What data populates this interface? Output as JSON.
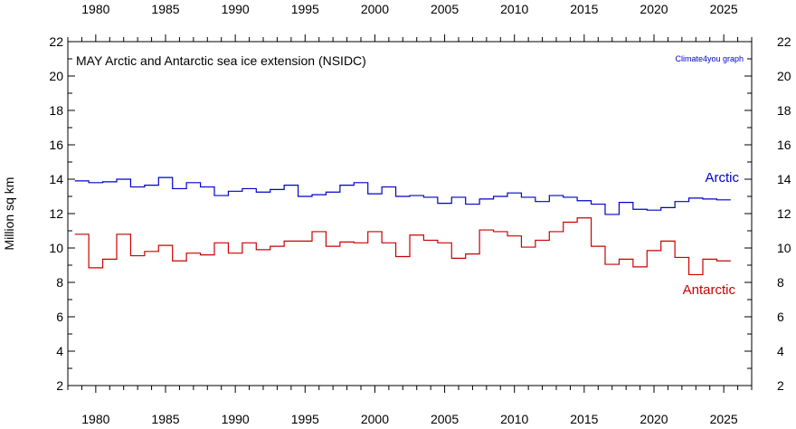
{
  "chart_data": {
    "type": "line",
    "step": true,
    "title": "MAY  Arctic and Antarctic sea ice extension (NSIDC)",
    "credit": "Climate4you graph",
    "xlabel": "",
    "ylabel": "Million sq km",
    "xlim": [
      1978,
      2027
    ],
    "ylim": [
      2,
      22
    ],
    "x_ticks": [
      1980,
      1985,
      1990,
      1995,
      2000,
      2005,
      2010,
      2015,
      2020,
      2025
    ],
    "y_ticks": [
      2,
      4,
      6,
      8,
      10,
      12,
      14,
      16,
      18,
      20,
      22
    ],
    "grid": false,
    "x": [
      1979,
      1980,
      1981,
      1982,
      1983,
      1984,
      1985,
      1986,
      1987,
      1988,
      1989,
      1990,
      1991,
      1992,
      1993,
      1994,
      1995,
      1996,
      1997,
      1998,
      1999,
      2000,
      2001,
      2002,
      2003,
      2004,
      2005,
      2006,
      2007,
      2008,
      2009,
      2010,
      2011,
      2012,
      2013,
      2014,
      2015,
      2016,
      2017,
      2018,
      2019,
      2020,
      2021,
      2022,
      2023,
      2024,
      2025
    ],
    "series": [
      {
        "name": "Arctic",
        "color": "#0000cc",
        "values": [
          13.9,
          13.8,
          13.85,
          14.0,
          13.55,
          13.65,
          14.1,
          13.45,
          13.8,
          13.55,
          13.05,
          13.3,
          13.45,
          13.25,
          13.4,
          13.65,
          13.0,
          13.1,
          13.25,
          13.65,
          13.8,
          13.15,
          13.55,
          13.0,
          13.05,
          12.95,
          12.6,
          12.95,
          12.55,
          12.85,
          13.0,
          13.2,
          12.95,
          12.7,
          13.05,
          12.95,
          12.75,
          12.55,
          11.95,
          12.65,
          12.25,
          12.2,
          12.35,
          12.7,
          12.9,
          12.85,
          12.8
        ]
      },
      {
        "name": "Antarctic",
        "color": "#cc0000",
        "values": [
          10.8,
          8.85,
          9.35,
          10.8,
          9.55,
          9.8,
          10.15,
          9.25,
          9.7,
          9.6,
          10.3,
          9.7,
          10.3,
          9.9,
          10.1,
          10.4,
          10.4,
          10.95,
          10.1,
          10.35,
          10.3,
          10.95,
          10.3,
          9.5,
          10.75,
          10.45,
          10.3,
          9.4,
          9.65,
          11.05,
          10.95,
          10.7,
          10.05,
          10.45,
          10.95,
          11.5,
          11.75,
          10.1,
          9.05,
          9.35,
          8.9,
          9.85,
          10.4,
          9.45,
          8.45,
          9.35,
          9.25
        ]
      }
    ]
  }
}
